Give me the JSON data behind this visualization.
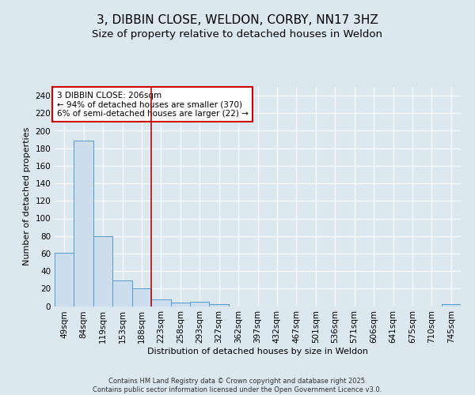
{
  "title1": "3, DIBBIN CLOSE, WELDON, CORBY, NN17 3HZ",
  "title2": "Size of property relative to detached houses in Weldon",
  "xlabel": "Distribution of detached houses by size in Weldon",
  "ylabel": "Number of detached properties",
  "categories": [
    "49sqm",
    "84sqm",
    "119sqm",
    "153sqm",
    "188sqm",
    "223sqm",
    "258sqm",
    "293sqm",
    "327sqm",
    "362sqm",
    "397sqm",
    "432sqm",
    "467sqm",
    "501sqm",
    "536sqm",
    "571sqm",
    "606sqm",
    "641sqm",
    "675sqm",
    "710sqm",
    "745sqm"
  ],
  "values": [
    61,
    189,
    80,
    29,
    20,
    8,
    4,
    5,
    2,
    0,
    0,
    0,
    0,
    0,
    0,
    0,
    0,
    0,
    0,
    0,
    2
  ],
  "bar_color": "#ccdded",
  "bar_edge_color": "#5599cc",
  "vline_index": 5,
  "vline_color": "#cc0000",
  "annotation_text": "3 DIBBIN CLOSE: 206sqm\n← 94% of detached houses are smaller (370)\n6% of semi-detached houses are larger (22) →",
  "annotation_box_color": "#ffffff",
  "annotation_box_edge_color": "#cc0000",
  "ylim": [
    0,
    250
  ],
  "yticks": [
    0,
    20,
    40,
    60,
    80,
    100,
    120,
    140,
    160,
    180,
    200,
    220,
    240
  ],
  "bg_color": "#dce8f0",
  "plot_bg_color": "#dce8f0",
  "footer_text": "Contains HM Land Registry data © Crown copyright and database right 2025.\nContains public sector information licensed under the Open Government Licence v3.0.",
  "grid_color": "#ffffff",
  "title_fontsize": 11,
  "subtitle_fontsize": 9.5,
  "axis_fontsize": 8,
  "tick_fontsize": 7.5,
  "footer_fontsize": 6,
  "annotation_fontsize": 7.5
}
